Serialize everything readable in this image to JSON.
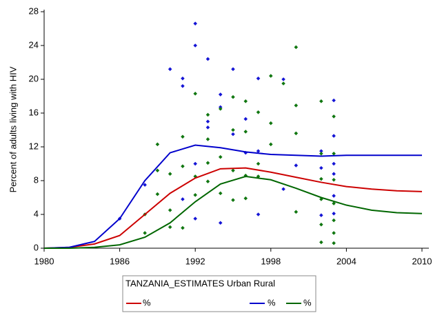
{
  "chart_data": {
    "type": "line",
    "y_label": "Percent of adults living with HIV",
    "legend_title": "TANZANIA_ESTIMATES Urban Rural",
    "xlim": [
      1980,
      2010
    ],
    "xticks": [
      1980,
      1986,
      1992,
      1998,
      2004,
      2010
    ],
    "ylim": [
      0,
      28
    ],
    "yticks": [
      0,
      4,
      8,
      12,
      16,
      20,
      24,
      28
    ],
    "series": [
      {
        "name": "%",
        "kind": "line",
        "color": "#cc0000",
        "x": [
          1980,
          1982,
          1984,
          1986,
          1988,
          1990,
          1992,
          1994,
          1996,
          1998,
          2000,
          2002,
          2004,
          2006,
          2008,
          2010
        ],
        "values": [
          0,
          0.1,
          0.5,
          1.5,
          4,
          6.5,
          8.3,
          9.4,
          9.5,
          9.0,
          8.4,
          7.8,
          7.3,
          7.0,
          6.8,
          6.7
        ]
      },
      {
        "name": "%",
        "kind": "line",
        "color": "#0000cc",
        "x": [
          1980,
          1982,
          1984,
          1986,
          1988,
          1990,
          1992,
          1994,
          1996,
          1998,
          2000,
          2002,
          2004,
          2006,
          2008,
          2010
        ],
        "values": [
          0,
          0.1,
          0.8,
          3.5,
          8.0,
          11.3,
          12.2,
          11.9,
          11.4,
          11.1,
          11.0,
          10.9,
          11.0,
          11.0,
          11.0,
          11.0
        ]
      },
      {
        "name": "%",
        "kind": "line",
        "color": "#006600",
        "x": [
          1980,
          1982,
          1984,
          1986,
          1988,
          1990,
          1992,
          1994,
          1996,
          1998,
          2000,
          2002,
          2004,
          2006,
          2008,
          2010
        ],
        "values": [
          0,
          0,
          0.1,
          0.4,
          1.3,
          3.0,
          5.5,
          7.6,
          8.5,
          8.1,
          7.1,
          6.0,
          5.1,
          4.5,
          4.2,
          4.1
        ]
      },
      {
        "kind": "scatter",
        "color": "#1515d5",
        "x": [
          1986,
          1988,
          1990,
          1991,
          1991,
          1992,
          1992,
          1992,
          1992,
          1991,
          1993,
          1993,
          1993,
          1994,
          1994,
          1994,
          1995,
          1995,
          1996,
          1996,
          1997,
          1997,
          1997,
          1999,
          1999,
          2000,
          2002,
          2002,
          2002,
          2003,
          2003,
          2003,
          2003,
          2003,
          2003
        ],
        "values": [
          3.5,
          7.5,
          21.2,
          20.1,
          19.2,
          26.6,
          24,
          10,
          3.5,
          5.8,
          22.4,
          15,
          14.3,
          18.2,
          16.7,
          3,
          21.2,
          13.5,
          15.3,
          11.3,
          20.1,
          4,
          11.5,
          20,
          7,
          9.8,
          11.5,
          9.5,
          3.9,
          17.5,
          13.3,
          10,
          8.8,
          6.2,
          4.1
        ]
      },
      {
        "kind": "scatter",
        "color": "#117711",
        "x": [
          1988,
          1988,
          1989,
          1989,
          1989,
          1990,
          1990,
          1990,
          1991,
          1991,
          1991,
          1992,
          1992,
          1992,
          1993,
          1993,
          1993,
          1993,
          1994,
          1994,
          1994,
          1995,
          1995,
          1995,
          1995,
          1996,
          1996,
          1996,
          1996,
          1997,
          1997,
          1997,
          1998,
          1998,
          1998,
          1999,
          2000,
          2000,
          2000,
          2000,
          2002,
          2002,
          2002,
          2002,
          2002,
          2002,
          2003,
          2003,
          2003,
          2003,
          2003,
          2003,
          2003
        ],
        "values": [
          4,
          1.8,
          12.3,
          9.2,
          6.4,
          8.8,
          2.5,
          4.5,
          13.2,
          9.7,
          2.4,
          18.3,
          8.5,
          6.3,
          15.8,
          12.9,
          10.1,
          7.9,
          16.5,
          10.8,
          6.5,
          17.9,
          14,
          9.2,
          5.7,
          17.4,
          13.8,
          8.6,
          5.9,
          16.1,
          10,
          8.5,
          20.4,
          14.8,
          12.3,
          19.5,
          23.8,
          16.9,
          13.6,
          4.3,
          17.4,
          11.2,
          8.2,
          5.8,
          2.8,
          0.7,
          15.6,
          11.2,
          8.1,
          5.3,
          3.3,
          1.8,
          0.6
        ]
      }
    ]
  }
}
